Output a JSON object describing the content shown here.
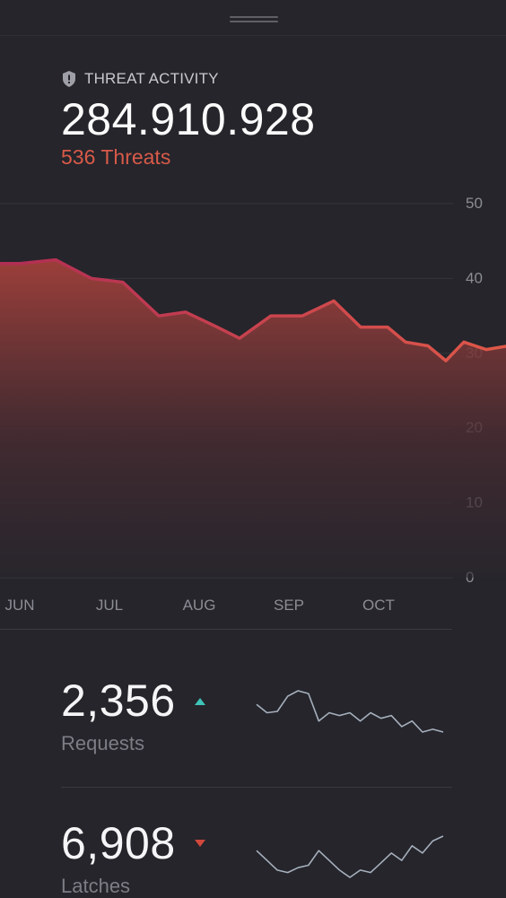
{
  "header": {
    "label": "THREAT ACTIVITY",
    "icon": "shield-icon",
    "total": "284.910.928",
    "threats": "536 Threats"
  },
  "colors": {
    "background": "#25252b",
    "accent": "#d85a49",
    "line_start": "#b02d54",
    "line_end": "#e15a48",
    "up": "#3fc3b8",
    "down": "#d0483c",
    "spark": "#a6b0bd"
  },
  "chart_data": {
    "type": "area",
    "x": [
      0,
      0.4,
      0.8,
      1.15,
      1.55,
      1.85,
      2.2,
      2.45,
      2.8,
      3.15,
      3.5,
      3.8,
      4.1,
      4.3,
      4.55,
      4.75,
      4.95,
      5.2,
      5.45,
      5.65
    ],
    "values": [
      42,
      42.5,
      40,
      39.5,
      35,
      35.5,
      33.5,
      32,
      35,
      35,
      37,
      33.5,
      33.5,
      31.5,
      31,
      29,
      31.5,
      30.5,
      31,
      30
    ],
    "x_ticks": [
      "JUN",
      "JUL",
      "AUG",
      "SEP",
      "OCT"
    ],
    "y_ticks": [
      "0",
      "10",
      "20",
      "30",
      "40",
      "50"
    ],
    "ylim": [
      0,
      50
    ],
    "grid": true,
    "marker_index": 19
  },
  "stats": [
    {
      "value": "2,356",
      "label": "Requests",
      "trend": "up",
      "spark": [
        12,
        9,
        9.5,
        15,
        17,
        16,
        6,
        9,
        8,
        9,
        6,
        9,
        7,
        8,
        4,
        6,
        2,
        3,
        2
      ]
    },
    {
      "value": "6,908",
      "label": "Latches",
      "trend": "down",
      "spark": [
        14,
        10,
        6,
        5,
        7,
        8,
        14,
        10,
        6,
        3,
        6,
        5,
        9,
        13,
        10,
        16,
        13,
        18,
        20
      ]
    }
  ]
}
